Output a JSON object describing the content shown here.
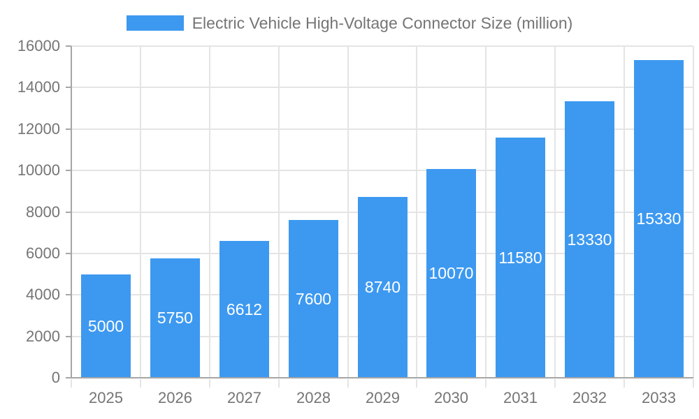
{
  "chart_data": {
    "type": "bar",
    "title": "Electric Vehicle High-Voltage Connector Size (million)",
    "categories": [
      "2025",
      "2026",
      "2027",
      "2028",
      "2029",
      "2030",
      "2031",
      "2032",
      "2033"
    ],
    "values": [
      5000,
      5750,
      6612,
      7600,
      8740,
      10070,
      11580,
      13330,
      15330
    ],
    "xlabel": "",
    "ylabel": "",
    "ylim": [
      0,
      16000
    ],
    "yticks": [
      0,
      2000,
      4000,
      6000,
      8000,
      10000,
      12000,
      14000,
      16000
    ],
    "grid": true,
    "legend_position": "top-center",
    "bar_labels_inside": true,
    "colors": {
      "bar": "#3D99F0",
      "grid": "#e4e4e4",
      "axis": "#a6a6a6",
      "text": "#757575",
      "bar_label": "#ffffff",
      "background": "#ffffff"
    }
  }
}
